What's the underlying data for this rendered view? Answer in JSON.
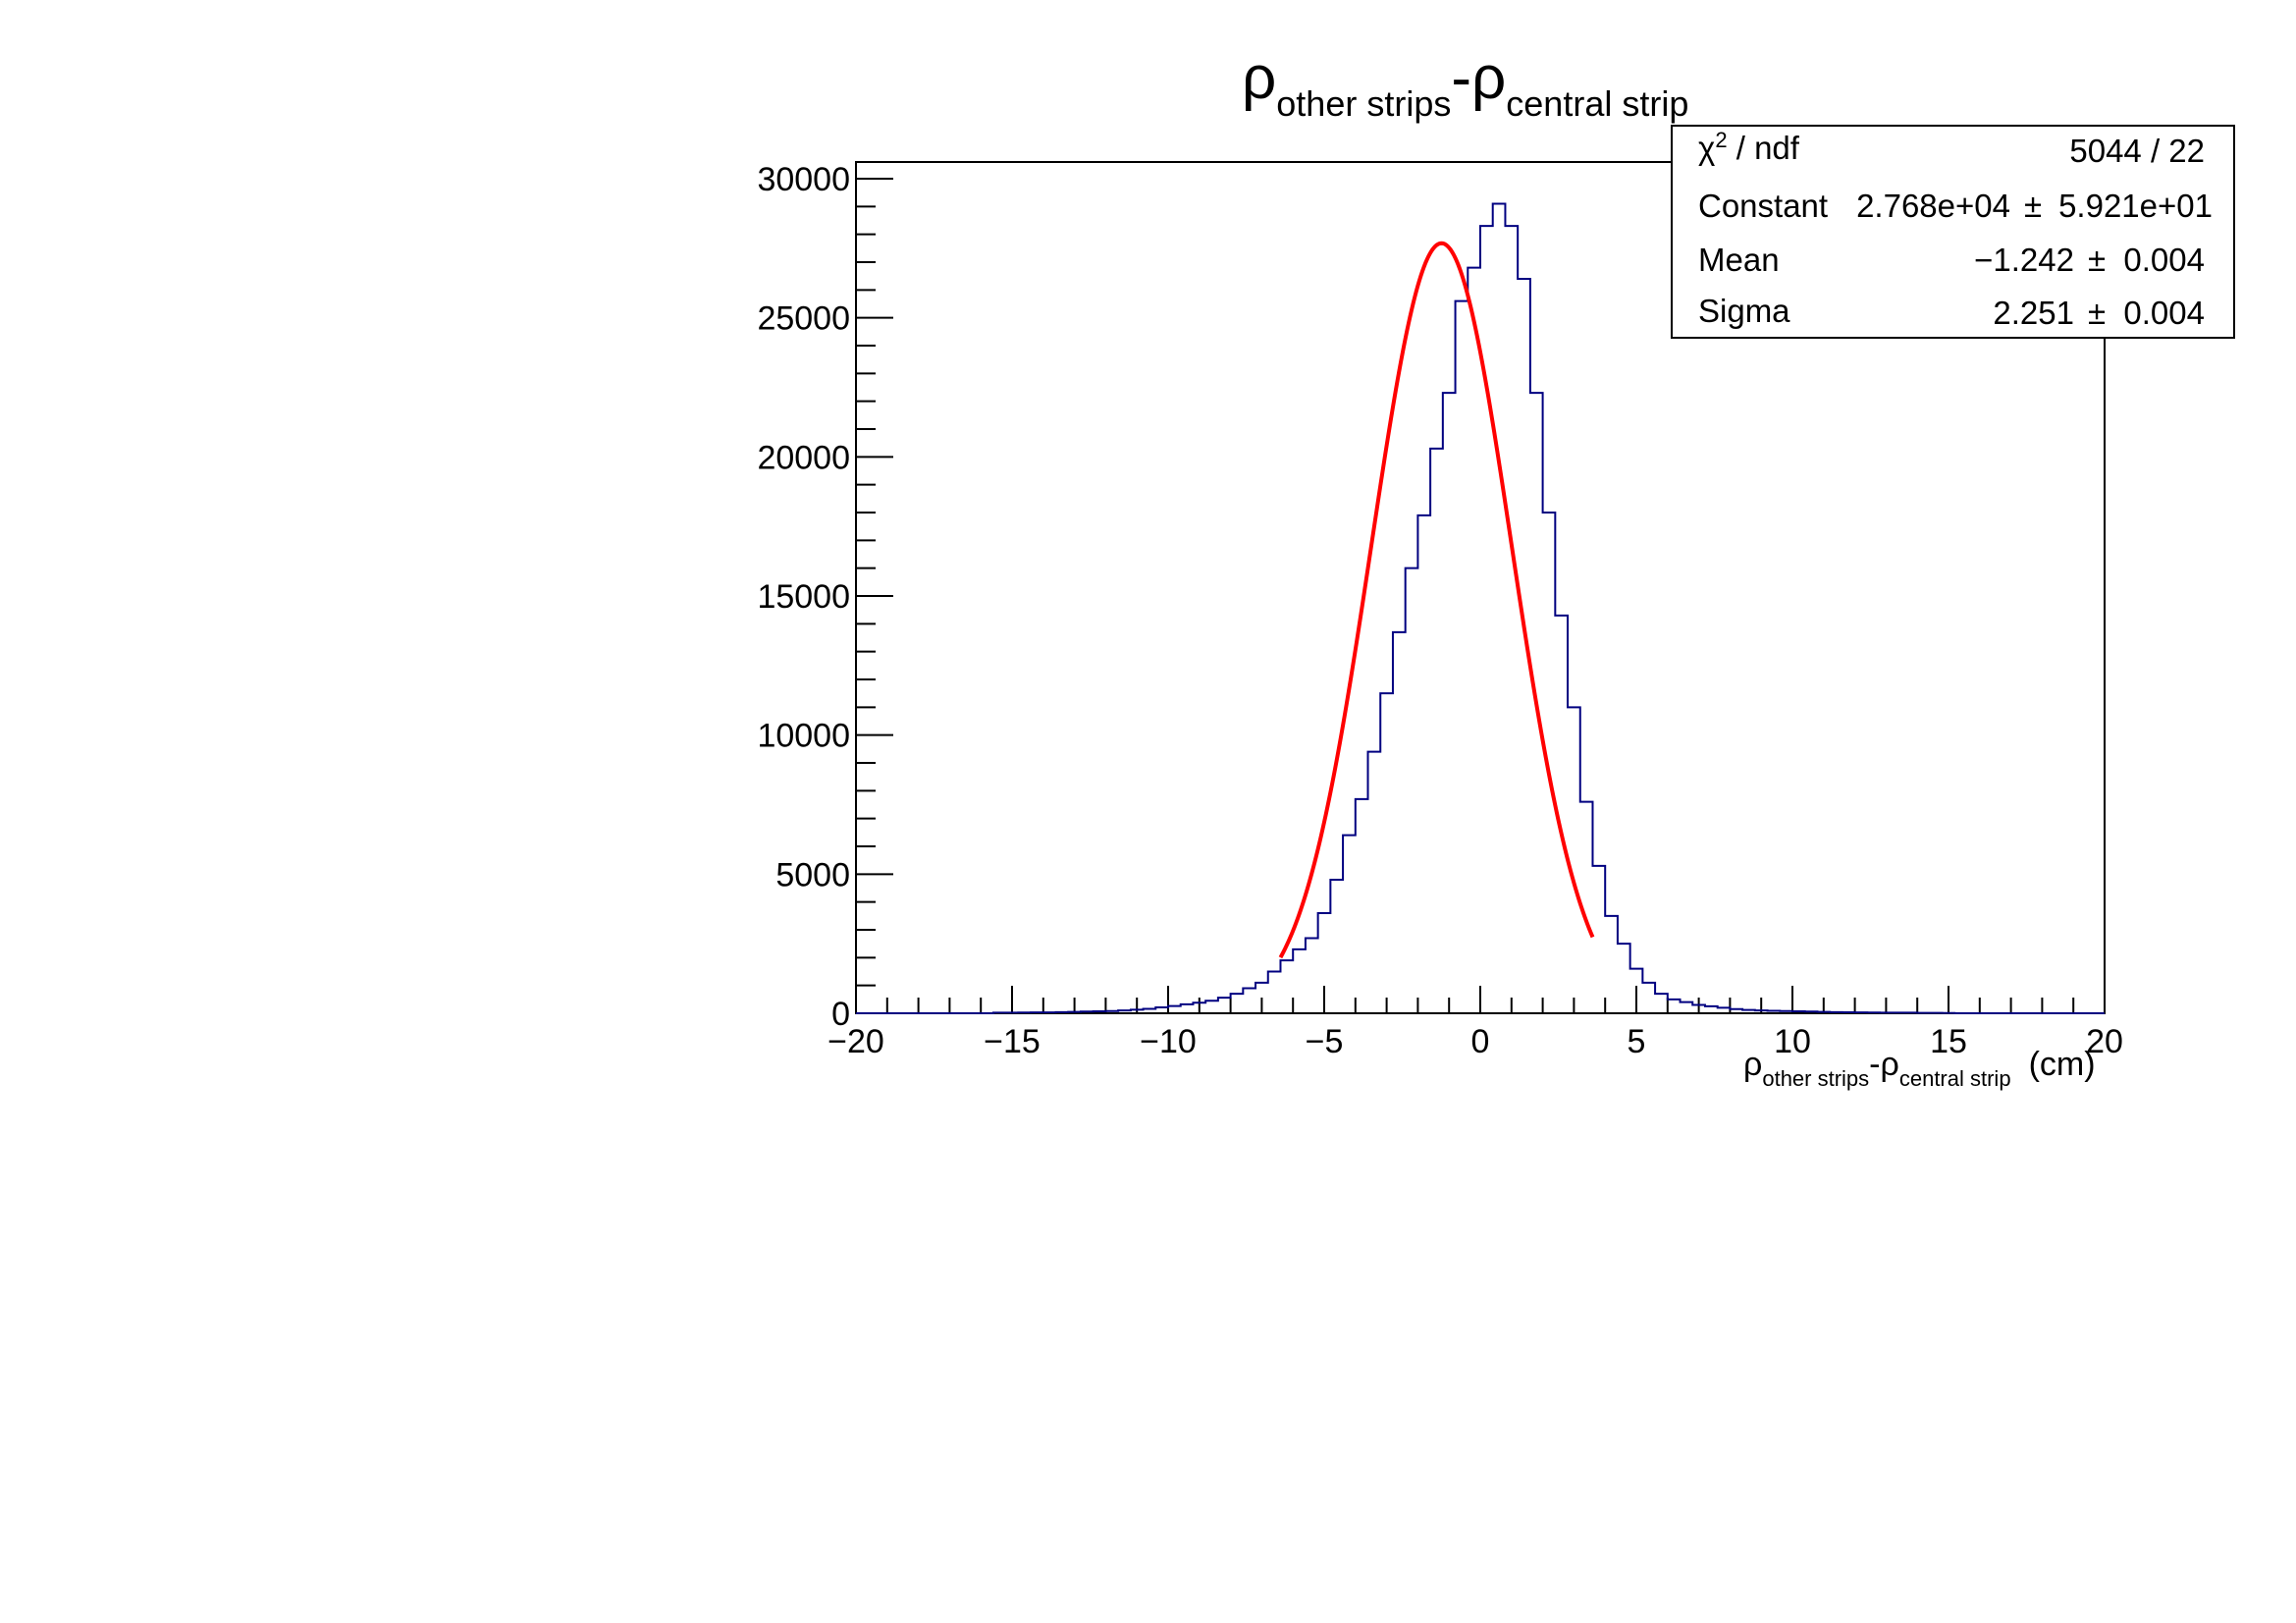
{
  "chart_data": {
    "type": "histogram",
    "title": {
      "rho": "ρ",
      "sub1": "other strips",
      "dash": "-ρ",
      "sub2": "central strip"
    },
    "xlabel": {
      "rho": "ρ",
      "sub1": "other strips",
      "dash": "-ρ",
      "sub2": "central strip",
      "unit": "(cm)"
    },
    "ylabel": "",
    "xlim": [
      -20,
      20
    ],
    "ylim": [
      0,
      30600
    ],
    "x_ticks": [
      -20,
      -15,
      -10,
      -5,
      0,
      5,
      10,
      15,
      20
    ],
    "x_tick_labels": [
      "−20",
      "−15",
      "−10",
      "−5",
      "0",
      "5",
      "10",
      "15",
      "20"
    ],
    "y_ticks": [
      0,
      5000,
      10000,
      15000,
      20000,
      25000,
      30000
    ],
    "y_tick_labels": [
      "0",
      "5000",
      "10000",
      "15000",
      "20000",
      "25000",
      "30000"
    ],
    "grid": false,
    "histogram_color": "#000080",
    "fit_color": "#ff0000",
    "bin_width": 0.4,
    "bin_low_edges": [
      -15.6,
      -15.2,
      -14.8,
      -14.4,
      -14.0,
      -13.6,
      -13.2,
      -12.8,
      -12.4,
      -12.0,
      -11.6,
      -11.2,
      -10.8,
      -10.4,
      -10.0,
      -9.6,
      -9.2,
      -8.8,
      -8.4,
      -8.0,
      -7.6,
      -7.2,
      -6.8,
      -6.4,
      -6.0,
      -5.6,
      -5.2,
      -4.8,
      -4.4,
      -4.0,
      -3.6,
      -3.2,
      -2.8,
      -2.4,
      -2.0,
      -1.6,
      -1.2,
      -0.8,
      -0.4,
      0.0,
      0.4,
      0.8,
      1.2,
      1.6,
      2.0,
      2.4,
      2.8,
      3.2,
      3.6,
      4.0,
      4.4,
      4.8,
      5.2,
      5.6,
      6.0,
      6.4,
      6.8,
      7.2,
      7.6,
      8.0,
      8.4,
      8.8,
      9.2,
      9.6,
      10.0,
      10.4,
      10.8,
      11.2,
      11.6,
      12.0,
      12.4,
      12.8,
      13.2,
      13.6,
      14.0,
      14.4,
      14.8
    ],
    "bin_counts": [
      20,
      20,
      25,
      30,
      30,
      40,
      50,
      60,
      70,
      80,
      100,
      130,
      160,
      210,
      260,
      320,
      380,
      450,
      560,
      700,
      900,
      1100,
      1500,
      1900,
      2300,
      2700,
      3600,
      4800,
      6400,
      7700,
      9400,
      11500,
      13700,
      16000,
      17900,
      20300,
      22300,
      25600,
      26800,
      28300,
      29100,
      28300,
      26400,
      22300,
      18000,
      14300,
      11000,
      7600,
      5300,
      3500,
      2500,
      1600,
      1100,
      700,
      500,
      400,
      300,
      250,
      200,
      150,
      120,
      100,
      90,
      80,
      70,
      60,
      50,
      40,
      35,
      30,
      25,
      20,
      20,
      20,
      15,
      15,
      10
    ],
    "fit": {
      "function": "gaus",
      "constant": 27680,
      "mean": -1.242,
      "sigma": 2.251,
      "x_range": [
        -6.4,
        3.6
      ]
    },
    "stats_box": {
      "chi2_label_chi": "χ",
      "chi2_label_sup": "2",
      "chi2_label_rest": " / ndf",
      "chi2_value": "5044 / 22",
      "rows": [
        {
          "name": "Constant",
          "value": "2.768e+04",
          "pm": "±",
          "error": "5.921e+01"
        },
        {
          "name": "Mean",
          "value": "−1.242",
          "pm": "±",
          "error": "0.004"
        },
        {
          "name": "Sigma",
          "value": "2.251",
          "pm": "±",
          "error": "0.004"
        }
      ]
    }
  }
}
